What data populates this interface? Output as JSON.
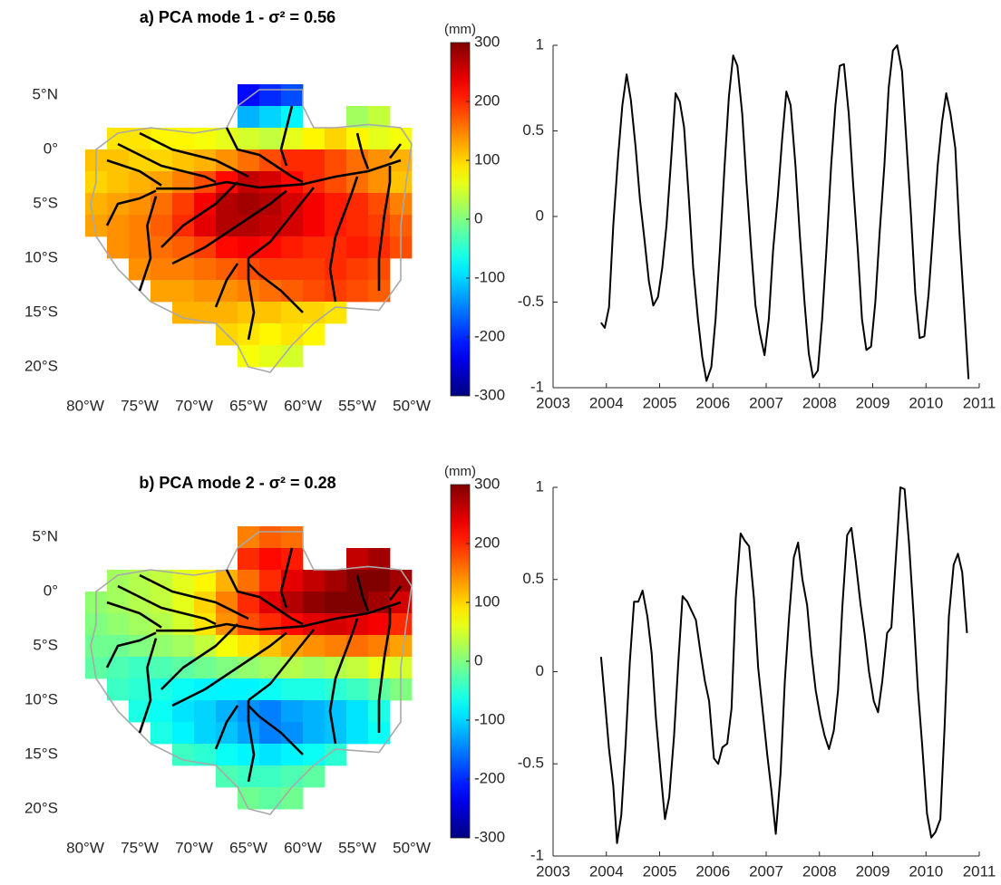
{
  "chart_data": [
    {
      "type": "heatmap",
      "title": "a) PCA mode 1 - σ² = 0.56",
      "colorbar_label": "(mm)",
      "xlim": [
        -82,
        -50
      ],
      "ylim": [
        -22.5,
        7.5
      ],
      "clim": [
        -300,
        300
      ],
      "xticks": [
        {
          "value": -80,
          "label": "80°W"
        },
        {
          "value": -75,
          "label": "75°W"
        },
        {
          "value": -70,
          "label": "70°W"
        },
        {
          "value": -65,
          "label": "65°W"
        },
        {
          "value": -60,
          "label": "60°W"
        },
        {
          "value": -55,
          "label": "55°W"
        },
        {
          "value": -50,
          "label": "50°W"
        }
      ],
      "yticks": [
        {
          "value": 5,
          "label": "5°N"
        },
        {
          "value": 0,
          "label": "0°"
        },
        {
          "value": -5,
          "label": "5°S"
        },
        {
          "value": -10,
          "label": "10°S"
        },
        {
          "value": -15,
          "label": "15°S"
        },
        {
          "value": -20,
          "label": "20°S"
        }
      ],
      "cticks": [
        -300,
        -200,
        -100,
        0,
        100,
        200,
        300
      ],
      "x_edges": [
        -80,
        -78,
        -76,
        -74,
        -72,
        -70,
        -68,
        -66,
        -64,
        -62,
        -60,
        -58,
        -56,
        -54,
        -52,
        -50
      ],
      "y_edges": [
        6,
        4,
        2,
        0,
        -2,
        -4,
        -6,
        -8,
        -10,
        -12,
        -14,
        -16,
        -18,
        -20
      ],
      "values": [
        [
          null,
          null,
          null,
          null,
          null,
          null,
          null,
          -220,
          -200,
          -180,
          null,
          null,
          null,
          null,
          null
        ],
        [
          null,
          null,
          null,
          null,
          null,
          null,
          null,
          -120,
          -100,
          -80,
          null,
          null,
          20,
          40,
          null
        ],
        [
          null,
          90,
          90,
          80,
          80,
          70,
          60,
          50,
          40,
          60,
          80,
          100,
          80,
          60,
          70
        ],
        [
          110,
          110,
          100,
          100,
          110,
          120,
          140,
          160,
          180,
          200,
          200,
          180,
          160,
          140,
          120
        ],
        [
          100,
          110,
          120,
          130,
          150,
          180,
          220,
          260,
          250,
          220,
          200,
          180,
          160,
          140,
          110
        ],
        [
          120,
          130,
          140,
          160,
          190,
          230,
          270,
          280,
          270,
          250,
          230,
          210,
          200,
          180,
          150
        ],
        [
          130,
          140,
          150,
          170,
          200,
          240,
          270,
          270,
          260,
          250,
          230,
          210,
          200,
          190,
          170
        ],
        [
          null,
          140,
          150,
          160,
          170,
          190,
          220,
          230,
          220,
          210,
          200,
          200,
          210,
          200,
          180
        ],
        [
          null,
          null,
          140,
          150,
          150,
          160,
          170,
          180,
          190,
          190,
          190,
          200,
          190,
          180,
          null
        ],
        [
          null,
          null,
          null,
          130,
          130,
          140,
          140,
          150,
          160,
          170,
          180,
          190,
          180,
          170,
          null
        ],
        [
          null,
          null,
          null,
          null,
          120,
          120,
          120,
          110,
          110,
          100,
          100,
          90,
          null,
          null,
          null
        ],
        [
          null,
          null,
          null,
          null,
          null,
          null,
          100,
          90,
          80,
          90,
          80,
          null,
          null,
          null,
          null
        ],
        [
          null,
          null,
          null,
          null,
          null,
          null,
          null,
          70,
          60,
          50,
          null,
          null,
          null,
          null,
          null
        ]
      ]
    },
    {
      "type": "line",
      "xlim": [
        2003,
        2011
      ],
      "ylim": [
        -1,
        1
      ],
      "xticks": [
        2003,
        2004,
        2005,
        2006,
        2007,
        2008,
        2009,
        2010,
        2011
      ],
      "yticks": [
        -1,
        -0.5,
        0,
        0.5,
        1
      ],
      "color": "#000000",
      "x": [
        2003.9,
        2003.97,
        2004.05,
        2004.13,
        2004.22,
        2004.3,
        2004.38,
        2004.46,
        2004.55,
        2004.63,
        2004.72,
        2004.8,
        2004.88,
        2004.97,
        2005.05,
        2005.13,
        2005.22,
        2005.3,
        2005.38,
        2005.46,
        2005.55,
        2005.63,
        2005.72,
        2005.8,
        2005.88,
        2005.97,
        2006.05,
        2006.13,
        2006.22,
        2006.3,
        2006.38,
        2006.46,
        2006.55,
        2006.63,
        2006.72,
        2006.8,
        2006.88,
        2006.97,
        2007.05,
        2007.13,
        2007.22,
        2007.3,
        2007.38,
        2007.46,
        2007.55,
        2007.63,
        2007.72,
        2007.8,
        2007.88,
        2007.97,
        2008.05,
        2008.13,
        2008.22,
        2008.3,
        2008.38,
        2008.46,
        2008.55,
        2008.63,
        2008.72,
        2008.8,
        2008.88,
        2008.97,
        2009.05,
        2009.13,
        2009.22,
        2009.3,
        2009.38,
        2009.46,
        2009.55,
        2009.63,
        2009.72,
        2009.8,
        2009.88,
        2009.97,
        2010.05,
        2010.13,
        2010.22,
        2010.3,
        2010.38,
        2010.46,
        2010.55,
        2010.63,
        2010.72,
        2010.8
      ],
      "values": [
        -0.62,
        -0.65,
        -0.53,
        -0.05,
        0.35,
        0.65,
        0.83,
        0.68,
        0.4,
        0.1,
        -0.15,
        -0.38,
        -0.52,
        -0.47,
        -0.3,
        -0.05,
        0.35,
        0.72,
        0.67,
        0.52,
        0.1,
        -0.3,
        -0.6,
        -0.82,
        -0.96,
        -0.88,
        -0.6,
        -0.2,
        0.3,
        0.7,
        0.94,
        0.88,
        0.6,
        0.2,
        -0.2,
        -0.52,
        -0.68,
        -0.81,
        -0.6,
        -0.2,
        0.12,
        0.45,
        0.73,
        0.65,
        0.3,
        -0.1,
        -0.5,
        -0.8,
        -0.94,
        -0.9,
        -0.6,
        -0.2,
        0.3,
        0.65,
        0.88,
        0.89,
        0.6,
        0.2,
        -0.2,
        -0.6,
        -0.78,
        -0.76,
        -0.5,
        -0.1,
        0.3,
        0.75,
        0.97,
        1.0,
        0.85,
        0.45,
        0.0,
        -0.45,
        -0.71,
        -0.7,
        -0.45,
        -0.1,
        0.3,
        0.55,
        0.72,
        0.6,
        0.4,
        -0.1,
        -0.55,
        -0.95
      ]
    },
    {
      "type": "heatmap",
      "title": "b) PCA mode 2 - σ² = 0.28",
      "colorbar_label": "(mm)",
      "xlim": [
        -82,
        -50
      ],
      "ylim": [
        -22.5,
        7.5
      ],
      "clim": [
        -300,
        300
      ],
      "xticks": [
        {
          "value": -80,
          "label": "80°W"
        },
        {
          "value": -75,
          "label": "75°W"
        },
        {
          "value": -70,
          "label": "70°W"
        },
        {
          "value": -65,
          "label": "65°W"
        },
        {
          "value": -60,
          "label": "60°W"
        },
        {
          "value": -55,
          "label": "55°W"
        },
        {
          "value": -50,
          "label": "50°W"
        }
      ],
      "yticks": [
        {
          "value": 5,
          "label": "5°N"
        },
        {
          "value": 0,
          "label": "0°"
        },
        {
          "value": -5,
          "label": "5°S"
        },
        {
          "value": -10,
          "label": "10°S"
        },
        {
          "value": -15,
          "label": "15°S"
        },
        {
          "value": -20,
          "label": "20°S"
        }
      ],
      "cticks": [
        -300,
        -200,
        -100,
        0,
        100,
        200,
        300
      ],
      "x_edges": [
        -80,
        -78,
        -76,
        -74,
        -72,
        -70,
        -68,
        -66,
        -64,
        -62,
        -60,
        -58,
        -56,
        -54,
        -52,
        -50
      ],
      "y_edges": [
        6,
        4,
        2,
        0,
        -2,
        -4,
        -6,
        -8,
        -10,
        -12,
        -14,
        -16,
        -18,
        -20
      ],
      "values": [
        [
          null,
          null,
          null,
          null,
          null,
          null,
          null,
          150,
          170,
          160,
          null,
          null,
          null,
          null,
          null
        ],
        [
          null,
          null,
          null,
          null,
          null,
          null,
          null,
          200,
          220,
          210,
          null,
          null,
          260,
          280,
          null
        ],
        [
          null,
          20,
          30,
          40,
          60,
          80,
          120,
          160,
          200,
          240,
          260,
          280,
          300,
          300,
          280
        ],
        [
          10,
          20,
          30,
          40,
          60,
          100,
          150,
          200,
          240,
          270,
          290,
          300,
          300,
          280,
          250
        ],
        [
          0,
          10,
          20,
          30,
          50,
          90,
          140,
          180,
          200,
          220,
          240,
          250,
          240,
          230,
          200
        ],
        [
          -10,
          -10,
          0,
          10,
          20,
          40,
          70,
          90,
          110,
          130,
          140,
          150,
          160,
          150,
          130
        ],
        [
          -20,
          -30,
          -40,
          -30,
          -20,
          -10,
          0,
          10,
          20,
          30,
          20,
          30,
          40,
          60,
          50
        ],
        [
          null,
          -40,
          -50,
          -60,
          -70,
          -80,
          -80,
          -80,
          -70,
          -60,
          -60,
          -50,
          -40,
          -20,
          0
        ],
        [
          null,
          null,
          -60,
          -70,
          -90,
          -100,
          -120,
          -140,
          -150,
          -130,
          -120,
          -110,
          -90,
          -60,
          null
        ],
        [
          null,
          null,
          null,
          -60,
          -80,
          -100,
          -110,
          -130,
          -150,
          -140,
          -120,
          -110,
          -90,
          -70,
          null
        ],
        [
          null,
          null,
          null,
          null,
          -40,
          -50,
          -70,
          -80,
          -90,
          -80,
          -70,
          -50,
          null,
          null,
          null
        ],
        [
          null,
          null,
          null,
          null,
          null,
          null,
          -30,
          -40,
          -40,
          -30,
          -20,
          null,
          null,
          null,
          null
        ],
        [
          null,
          null,
          null,
          null,
          null,
          null,
          null,
          -10,
          -20,
          -10,
          null,
          null,
          null,
          null,
          null
        ]
      ]
    },
    {
      "type": "line",
      "xlim": [
        2003,
        2011
      ],
      "ylim": [
        -1,
        1
      ],
      "xticks": [
        2003,
        2004,
        2005,
        2006,
        2007,
        2008,
        2009,
        2010,
        2011
      ],
      "yticks": [
        -1,
        -0.5,
        0,
        0.5,
        1
      ],
      "color": "#000000",
      "x": [
        2003.9,
        2003.97,
        2004.05,
        2004.13,
        2004.2,
        2004.28,
        2004.36,
        2004.44,
        2004.52,
        2004.6,
        2004.68,
        2004.77,
        2004.85,
        2004.93,
        2005.02,
        2005.1,
        2005.18,
        2005.27,
        2005.35,
        2005.43,
        2005.52,
        2005.6,
        2005.68,
        2005.77,
        2005.85,
        2005.93,
        2006.02,
        2006.1,
        2006.18,
        2006.27,
        2006.35,
        2006.43,
        2006.52,
        2006.6,
        2006.68,
        2006.77,
        2006.85,
        2006.93,
        2007.02,
        2007.1,
        2007.18,
        2007.27,
        2007.35,
        2007.43,
        2007.52,
        2007.6,
        2007.68,
        2007.77,
        2007.85,
        2007.93,
        2008.02,
        2008.1,
        2008.18,
        2008.27,
        2008.35,
        2008.43,
        2008.52,
        2008.6,
        2008.68,
        2008.77,
        2008.85,
        2008.93,
        2009.02,
        2009.1,
        2009.18,
        2009.27,
        2009.35,
        2009.43,
        2009.52,
        2009.6,
        2009.68,
        2009.77,
        2009.85,
        2009.93,
        2010.02,
        2010.1,
        2010.18,
        2010.27,
        2010.35,
        2010.43,
        2010.52,
        2010.6,
        2010.68,
        2010.77
      ],
      "values": [
        0.08,
        -0.15,
        -0.42,
        -0.62,
        -0.93,
        -0.78,
        -0.4,
        0.05,
        0.38,
        0.38,
        0.44,
        0.3,
        0.1,
        -0.25,
        -0.55,
        -0.8,
        -0.68,
        -0.35,
        0.05,
        0.41,
        0.38,
        0.33,
        0.28,
        0.1,
        -0.05,
        -0.16,
        -0.47,
        -0.5,
        -0.41,
        -0.39,
        -0.2,
        0.4,
        0.75,
        0.71,
        0.68,
        0.4,
        0.02,
        -0.2,
        -0.45,
        -0.65,
        -0.88,
        -0.55,
        -0.05,
        0.3,
        0.62,
        0.7,
        0.5,
        0.36,
        0.1,
        -0.1,
        -0.25,
        -0.35,
        -0.42,
        -0.32,
        -0.1,
        0.35,
        0.74,
        0.78,
        0.6,
        0.37,
        0.2,
        0.0,
        -0.16,
        -0.22,
        -0.05,
        0.21,
        0.24,
        0.6,
        1.0,
        0.99,
        0.7,
        0.3,
        -0.1,
        -0.4,
        -0.77,
        -0.9,
        -0.87,
        -0.8,
        -0.3,
        0.3,
        0.58,
        0.64,
        0.54,
        0.21
      ]
    }
  ]
}
